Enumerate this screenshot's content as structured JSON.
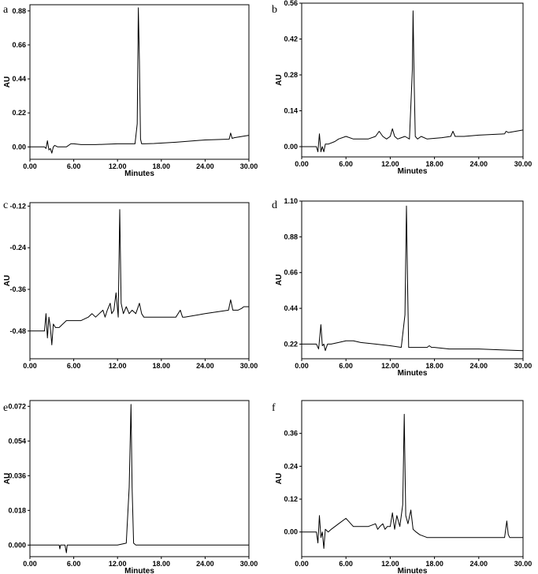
{
  "chart_data": [
    {
      "panel": "a",
      "type": "line",
      "xlabel": "Minutes",
      "ylabel": "AU",
      "xlim": [
        0,
        30
      ],
      "ylim": [
        -0.08,
        0.92
      ],
      "xticks": [
        "0.00",
        "6.00",
        "12.00",
        "18.00",
        "24.00",
        "30.00"
      ],
      "yticks": [
        {
          "v": 0.0,
          "t": "0.00"
        },
        {
          "v": 0.22,
          "t": "0.22"
        },
        {
          "v": 0.44,
          "t": "0.44"
        },
        {
          "v": 0.66,
          "t": "0.66"
        },
        {
          "v": 0.88,
          "t": "0.88"
        }
      ],
      "series": [
        {
          "x": [
            0,
            2.0,
            2.2,
            2.4,
            2.6,
            2.8,
            3.0,
            3.2,
            3.4,
            3.8,
            4.5,
            5.0,
            5.6,
            6.0,
            7,
            9,
            12,
            14.4,
            14.7,
            14.85,
            15.0,
            15.15,
            15.3,
            15.6,
            17,
            20,
            24,
            27.3,
            27.5,
            27.7,
            28,
            30
          ],
          "y": [
            0,
            0,
            -0.01,
            0.04,
            -0.02,
            -0.01,
            -0.04,
            0.0,
            0.01,
            0.0,
            0.0,
            0.0,
            0.02,
            0.02,
            0.015,
            0.015,
            0.02,
            0.02,
            0.15,
            0.9,
            0.55,
            0.05,
            0.02,
            0.02,
            0.022,
            0.03,
            0.045,
            0.05,
            0.09,
            0.055,
            0.06,
            0.075
          ]
        }
      ]
    },
    {
      "panel": "b",
      "type": "line",
      "xlabel": "Minutes",
      "ylabel": "AU",
      "xlim": [
        0,
        30
      ],
      "ylim": [
        -0.04,
        0.56
      ],
      "xticks": [
        "0.00",
        "6.00",
        "12.00",
        "18.00",
        "24.00",
        "30.00"
      ],
      "yticks": [
        {
          "v": 0.0,
          "t": "0.00"
        },
        {
          "v": 0.14,
          "t": "0.14"
        },
        {
          "v": 0.28,
          "t": "0.28"
        },
        {
          "v": 0.42,
          "t": "0.42"
        },
        {
          "v": 0.56,
          "t": "0.56"
        }
      ],
      "series": [
        {
          "x": [
            0,
            2.0,
            2.2,
            2.4,
            2.6,
            2.8,
            3.0,
            3.2,
            3.6,
            4.5,
            5,
            6,
            7,
            9,
            10,
            10.5,
            11,
            11.5,
            12.0,
            12.3,
            12.6,
            13,
            14,
            14.6,
            15.0,
            15.1,
            15.25,
            15.4,
            15.7,
            16.2,
            17,
            19,
            20.2,
            20.5,
            20.8,
            21.2,
            22,
            24,
            27.5,
            27.7,
            28,
            30
          ],
          "y": [
            0,
            0,
            -0.02,
            0.05,
            -0.02,
            0.0,
            -0.02,
            0.01,
            0.01,
            0.02,
            0.03,
            0.04,
            0.03,
            0.03,
            0.04,
            0.06,
            0.04,
            0.03,
            0.04,
            0.07,
            0.04,
            0.03,
            0.04,
            0.03,
            0.3,
            0.53,
            0.25,
            0.04,
            0.03,
            0.04,
            0.03,
            0.035,
            0.04,
            0.06,
            0.04,
            0.04,
            0.04,
            0.045,
            0.05,
            0.06,
            0.055,
            0.065
          ]
        }
      ]
    },
    {
      "panel": "c",
      "type": "line",
      "xlabel": "",
      "ylabel": "AU",
      "xlim": [
        0,
        30
      ],
      "ylim": [
        -0.56,
        -0.11
      ],
      "xticks": [
        "0.00",
        "6.00",
        "12.00",
        "18.00",
        "24.00",
        "30.00"
      ],
      "yticks": [
        {
          "v": -0.12,
          "t": "-0.12"
        },
        {
          "v": -0.24,
          "t": "-0.24"
        },
        {
          "v": -0.36,
          "t": "-0.36"
        },
        {
          "v": -0.48,
          "t": "-0.48"
        }
      ],
      "series": [
        {
          "x": [
            0,
            2.0,
            2.2,
            2.4,
            2.6,
            2.8,
            3.0,
            3.2,
            3.5,
            4,
            5,
            6,
            7,
            8,
            8.5,
            9,
            9.5,
            10,
            10.3,
            10.6,
            11,
            11.2,
            11.5,
            11.8,
            12.1,
            12.3,
            12.5,
            12.8,
            13.2,
            13.6,
            14,
            14.5,
            15,
            15.3,
            15.6,
            16,
            17,
            18,
            20,
            20.6,
            20.9,
            21.2,
            24,
            27.2,
            27.5,
            27.8,
            28.5,
            29,
            29.3,
            30
          ],
          "y": [
            -0.48,
            -0.48,
            -0.43,
            -0.5,
            -0.44,
            -0.47,
            -0.52,
            -0.46,
            -0.47,
            -0.47,
            -0.45,
            -0.45,
            -0.45,
            -0.44,
            -0.43,
            -0.44,
            -0.43,
            -0.42,
            -0.44,
            -0.42,
            -0.4,
            -0.43,
            -0.42,
            -0.37,
            -0.44,
            -0.13,
            -0.4,
            -0.43,
            -0.41,
            -0.43,
            -0.42,
            -0.43,
            -0.4,
            -0.43,
            -0.44,
            -0.44,
            -0.44,
            -0.44,
            -0.44,
            -0.42,
            -0.44,
            -0.44,
            -0.43,
            -0.42,
            -0.39,
            -0.42,
            -0.42,
            -0.415,
            -0.41,
            -0.41
          ]
        }
      ]
    },
    {
      "panel": "d",
      "type": "line",
      "xlabel": "Minutes",
      "ylabel": "AU",
      "xlim": [
        0,
        30
      ],
      "ylim": [
        0.13,
        1.1
      ],
      "xticks": [
        "0.00",
        "6.00",
        "12.00",
        "18.00",
        "24.00",
        "30.00"
      ],
      "yticks": [
        {
          "v": 0.22,
          "t": "0.22"
        },
        {
          "v": 0.44,
          "t": "0.44"
        },
        {
          "v": 0.66,
          "t": "0.66"
        },
        {
          "v": 0.88,
          "t": "0.88"
        },
        {
          "v": 1.1,
          "t": "1.10"
        }
      ],
      "series": [
        {
          "x": [
            0,
            2.0,
            2.3,
            2.6,
            2.8,
            3.0,
            3.2,
            3.5,
            4,
            5,
            6,
            7,
            8,
            10,
            12,
            13.5,
            14.0,
            14.2,
            14.35,
            14.5,
            14.7,
            15,
            16,
            17,
            17.3,
            17.6,
            18,
            20,
            24,
            27,
            30
          ],
          "y": [
            0.22,
            0.22,
            0.19,
            0.34,
            0.21,
            0.22,
            0.18,
            0.22,
            0.22,
            0.23,
            0.24,
            0.24,
            0.23,
            0.22,
            0.21,
            0.2,
            0.4,
            1.07,
            0.6,
            0.2,
            0.2,
            0.2,
            0.2,
            0.2,
            0.21,
            0.2,
            0.2,
            0.19,
            0.19,
            0.185,
            0.18
          ]
        }
      ]
    },
    {
      "panel": "e",
      "type": "line",
      "xlabel": "Minutes",
      "ylabel": "AU",
      "xlim": [
        0,
        30
      ],
      "ylim": [
        -0.006,
        0.075
      ],
      "xticks": [
        "0.00",
        "6.00",
        "12.00",
        "18.00",
        "24.00",
        "30.00"
      ],
      "yticks": [
        {
          "v": 0.0,
          "t": "0.000"
        },
        {
          "v": 0.018,
          "t": "0.018"
        },
        {
          "v": 0.036,
          "t": "0.036"
        },
        {
          "v": 0.054,
          "t": "0.054"
        },
        {
          "v": 0.072,
          "t": "0.072"
        }
      ],
      "series": [
        {
          "x": [
            0,
            4.0,
            4.1,
            4.2,
            4.3,
            4.4,
            4.8,
            5.0,
            5.1,
            5.2,
            6,
            9,
            12,
            13.2,
            13.6,
            13.85,
            14.0,
            14.2,
            14.5,
            15,
            18,
            24,
            30
          ],
          "y": [
            0,
            0,
            -0.002,
            0,
            0,
            0,
            0,
            -0.004,
            0,
            0,
            0,
            0,
            0,
            0.001,
            0.03,
            0.073,
            0.03,
            0.001,
            0,
            0,
            0,
            0,
            0
          ]
        }
      ]
    },
    {
      "panel": "f",
      "type": "line",
      "xlabel": "Minutes",
      "ylabel": "AU",
      "xlim": [
        0,
        30
      ],
      "ylim": [
        -0.09,
        0.48
      ],
      "xticks": [
        "0.00",
        "6.00",
        "12.00",
        "18.00",
        "24.00",
        "30.00"
      ],
      "yticks": [
        {
          "v": 0.0,
          "t": "0.00"
        },
        {
          "v": 0.12,
          "t": "0.12"
        },
        {
          "v": 0.24,
          "t": "0.24"
        },
        {
          "v": 0.36,
          "t": "0.36"
        }
      ],
      "series": [
        {
          "x": [
            0,
            2.0,
            2.2,
            2.4,
            2.6,
            2.8,
            3.0,
            3.2,
            3.6,
            4,
            5,
            6,
            7,
            8,
            9,
            10,
            10.3,
            10.6,
            11,
            11.3,
            11.6,
            12,
            12.3,
            12.6,
            12.9,
            13.3,
            13.7,
            13.9,
            14.1,
            14.4,
            14.8,
            15.1,
            15.5,
            16,
            17,
            20,
            24,
            27.5,
            27.8,
            28.0,
            28.2,
            28.6,
            30
          ],
          "y": [
            0,
            0,
            -0.04,
            0.06,
            -0.02,
            0.0,
            -0.06,
            0.01,
            0.0,
            0.01,
            0.03,
            0.05,
            0.02,
            0.02,
            0.02,
            0.03,
            0.01,
            0.02,
            0.03,
            0.01,
            0.02,
            0.02,
            0.07,
            0.01,
            0.06,
            0.02,
            0.1,
            0.43,
            0.06,
            0.03,
            0.08,
            0.01,
            0.0,
            -0.01,
            -0.02,
            -0.02,
            -0.02,
            -0.02,
            0.04,
            -0.01,
            -0.02,
            -0.02,
            -0.02
          ]
        }
      ]
    }
  ]
}
